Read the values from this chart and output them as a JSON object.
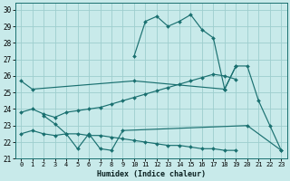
{
  "xlabel": "Humidex (Indice chaleur)",
  "xlim": [
    -0.5,
    23.5
  ],
  "ylim": [
    21,
    30.4
  ],
  "xtick_labels": [
    "0",
    "1",
    "2",
    "3",
    "4",
    "5",
    "6",
    "7",
    "8",
    "9",
    "10",
    "11",
    "12",
    "13",
    "14",
    "15",
    "16",
    "17",
    "18",
    "19",
    "20",
    "21",
    "22",
    "23"
  ],
  "ytick_labels": [
    "21",
    "22",
    "23",
    "24",
    "25",
    "26",
    "27",
    "28",
    "29",
    "30"
  ],
  "ytick_vals": [
    21,
    22,
    23,
    24,
    25,
    26,
    27,
    28,
    29,
    30
  ],
  "bg_color": "#c8eaea",
  "grid_color": "#9ecece",
  "line_color": "#1a7070",
  "lines": [
    {
      "x": [
        10,
        11,
        12,
        13,
        14,
        15,
        16,
        17,
        18,
        19,
        20,
        21,
        22,
        23
      ],
      "y": [
        27.2,
        29.3,
        29.6,
        29.0,
        29.3,
        29.7,
        28.8,
        28.3,
        25.2,
        26.6,
        26.6,
        24.5,
        23.0,
        21.5
      ]
    },
    {
      "x": [
        0,
        1,
        10,
        18,
        19
      ],
      "y": [
        25.7,
        25.2,
        25.7,
        25.2,
        26.6
      ]
    },
    {
      "x": [
        2,
        3,
        4,
        5,
        6,
        7,
        8,
        9,
        20,
        23
      ],
      "y": [
        23.6,
        23.1,
        22.5,
        21.6,
        22.5,
        21.6,
        21.5,
        22.7,
        23.0,
        21.5
      ]
    },
    {
      "x": [
        0,
        1,
        2,
        3,
        4,
        5,
        6,
        7,
        8,
        9,
        10,
        11,
        12,
        13,
        14,
        15,
        16,
        17,
        18,
        19
      ],
      "y": [
        23.8,
        24.0,
        23.7,
        23.5,
        23.8,
        23.9,
        24.0,
        24.1,
        24.3,
        24.5,
        24.7,
        24.9,
        25.1,
        25.3,
        25.5,
        25.7,
        25.9,
        26.1,
        26.0,
        25.8
      ]
    },
    {
      "x": [
        0,
        1,
        2,
        3,
        4,
        5,
        6,
        7,
        8,
        9,
        10,
        11,
        12,
        13,
        14,
        15,
        16,
        17,
        18,
        19
      ],
      "y": [
        22.5,
        22.7,
        22.5,
        22.4,
        22.5,
        22.5,
        22.4,
        22.4,
        22.3,
        22.2,
        22.1,
        22.0,
        21.9,
        21.8,
        21.8,
        21.7,
        21.6,
        21.6,
        21.5,
        21.5
      ]
    }
  ]
}
